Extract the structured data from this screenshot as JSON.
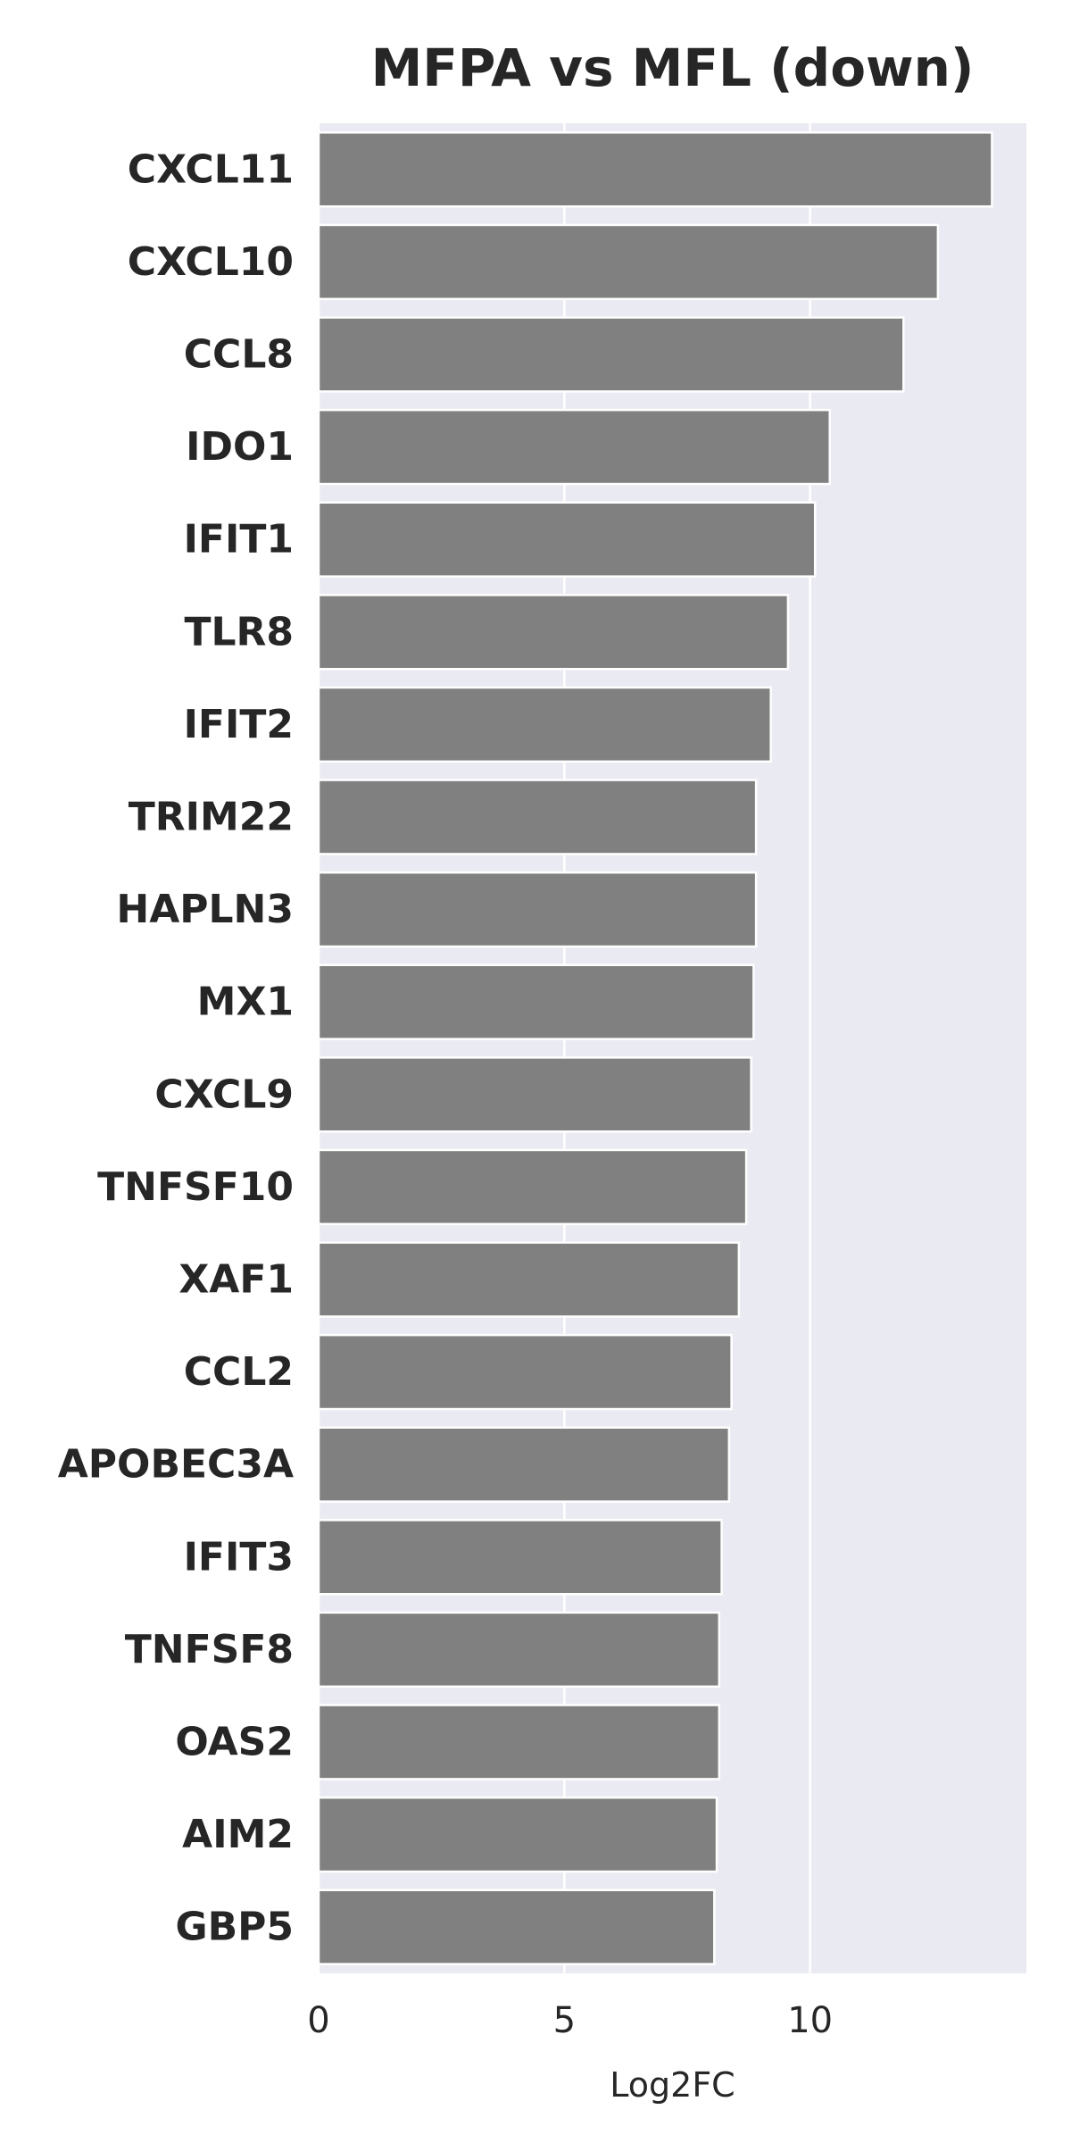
{
  "chart_data": {
    "type": "bar",
    "orientation": "horizontal",
    "title": "MFPA vs MFL (down)",
    "xlabel": "Log2FC",
    "ylabel": "",
    "xlim": [
      0,
      14.4
    ],
    "xticks": [
      0,
      5,
      10
    ],
    "grid": true,
    "categories": [
      "CXCL11",
      "CXCL10",
      "CCL8",
      "IDO1",
      "IFIT1",
      "TLR8",
      "IFIT2",
      "TRIM22",
      "HAPLN3",
      "MX1",
      "CXCL9",
      "TNFSF10",
      "XAF1",
      "CCL2",
      "APOBEC3A",
      "IFIT3",
      "TNFSF8",
      "OAS2",
      "AIM2",
      "GBP5"
    ],
    "values": [
      13.7,
      12.6,
      11.9,
      10.4,
      10.1,
      9.55,
      9.2,
      8.9,
      8.9,
      8.85,
      8.8,
      8.7,
      8.55,
      8.4,
      8.35,
      8.2,
      8.15,
      8.15,
      8.1,
      8.05
    ],
    "colors": {
      "bar": "#808080",
      "plot_bg": "#eaeaf2",
      "grid": "#ffffff",
      "text": "#262626"
    }
  }
}
